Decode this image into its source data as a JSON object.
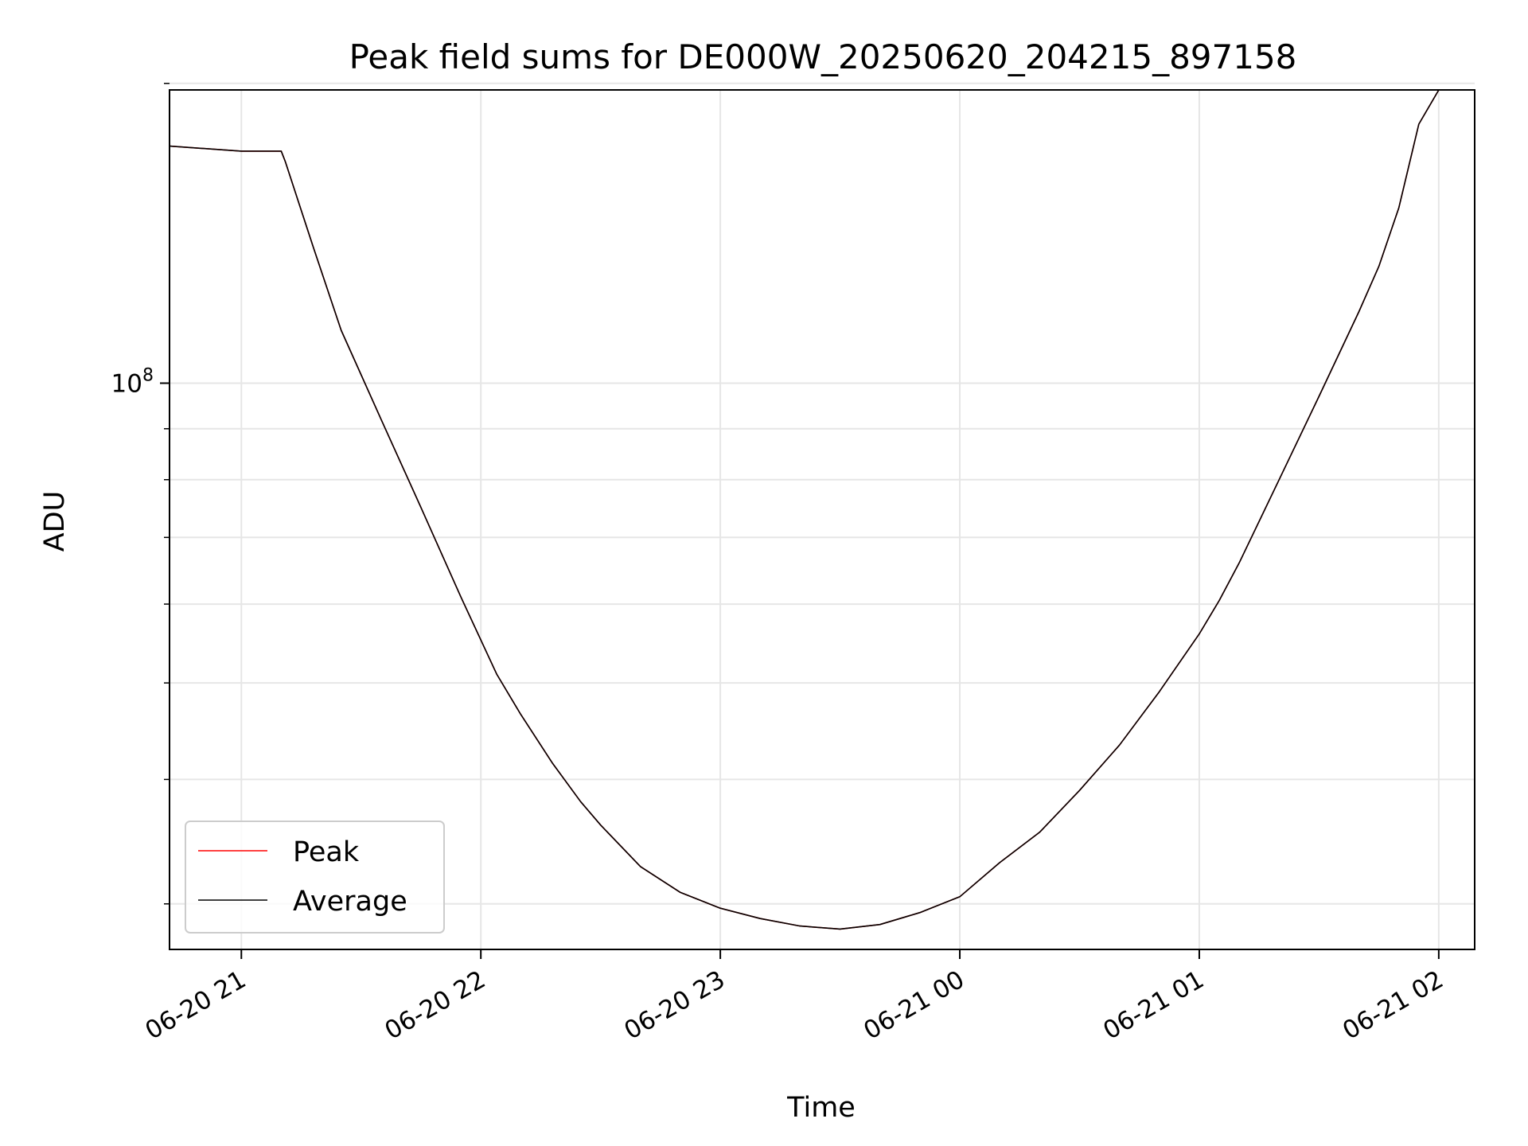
{
  "chart_data": {
    "type": "line",
    "title": "Peak field sums for DE000W_20250620_204215_897158",
    "xlabel": "Time",
    "ylabel": "ADU",
    "y_scale": "log",
    "grid": true,
    "legend_position": "lower-left",
    "xlim": [
      "2025-06-20 20:42",
      "2025-06-21 02:09"
    ],
    "ylim": [
      27000000,
      197000000
    ],
    "x_ticks": [
      {
        "value": "2025-06-20 21:00",
        "label": "06-20 21"
      },
      {
        "value": "2025-06-20 22:00",
        "label": "06-20 22"
      },
      {
        "value": "2025-06-20 23:00",
        "label": "06-20 23"
      },
      {
        "value": "2025-06-21 00:00",
        "label": "06-21 00"
      },
      {
        "value": "2025-06-21 01:00",
        "label": "06-21 01"
      },
      {
        "value": "2025-06-21 02:00",
        "label": "06-21 02"
      }
    ],
    "y_major_ticks": [
      {
        "value": 100000000,
        "label_base": "10",
        "label_exp": "8"
      }
    ],
    "y_minor_ticks": [
      30000000,
      40000000,
      50000000,
      60000000,
      70000000,
      80000000,
      90000000,
      200000000
    ],
    "series": [
      {
        "name": "Peak",
        "color": "#ff0000",
        "points": [
          [
            "2025-06-20 20:42",
            173000000
          ],
          [
            "2025-06-20 21:00",
            171000000
          ],
          [
            "2025-06-20 21:10",
            171000000
          ],
          [
            "2025-06-20 21:11",
            167000000
          ],
          [
            "2025-06-20 21:18",
            137000000
          ],
          [
            "2025-06-20 21:25",
            113000000
          ],
          [
            "2025-06-20 21:35",
            92000000
          ],
          [
            "2025-06-20 21:45",
            75000000
          ],
          [
            "2025-06-20 21:55",
            61000000
          ],
          [
            "2025-06-20 22:04",
            51000000
          ],
          [
            "2025-06-20 22:10",
            46500000
          ],
          [
            "2025-06-20 22:18",
            41500000
          ],
          [
            "2025-06-20 22:25",
            38000000
          ],
          [
            "2025-06-20 22:30",
            36000000
          ],
          [
            "2025-06-20 22:40",
            32700000
          ],
          [
            "2025-06-20 22:50",
            30800000
          ],
          [
            "2025-06-20 23:00",
            29700000
          ],
          [
            "2025-06-20 23:10",
            29000000
          ],
          [
            "2025-06-20 23:20",
            28500000
          ],
          [
            "2025-06-20 23:30",
            28300000
          ],
          [
            "2025-06-20 23:40",
            28600000
          ],
          [
            "2025-06-20 23:50",
            29400000
          ],
          [
            "2025-06-21 00:00",
            30500000
          ],
          [
            "2025-06-21 00:10",
            33000000
          ],
          [
            "2025-06-21 00:20",
            35400000
          ],
          [
            "2025-06-21 00:30",
            39000000
          ],
          [
            "2025-06-21 00:40",
            43300000
          ],
          [
            "2025-06-21 00:50",
            49000000
          ],
          [
            "2025-06-21 01:00",
            56000000
          ],
          [
            "2025-06-21 01:05",
            60500000
          ],
          [
            "2025-06-21 01:10",
            66000000
          ],
          [
            "2025-06-21 01:20",
            80000000
          ],
          [
            "2025-06-21 01:30",
            97000000
          ],
          [
            "2025-06-21 01:40",
            118000000
          ],
          [
            "2025-06-21 01:45",
            131000000
          ],
          [
            "2025-06-21 01:50",
            150000000
          ],
          [
            "2025-06-21 01:55",
            182000000
          ],
          [
            "2025-06-21 02:00",
            197000000
          ],
          [
            "2025-06-21 02:09",
            197000000
          ]
        ]
      },
      {
        "name": "Average",
        "color": "#000000",
        "points": [
          [
            "2025-06-20 20:42",
            173000000
          ],
          [
            "2025-06-20 21:00",
            171000000
          ],
          [
            "2025-06-20 21:10",
            171000000
          ],
          [
            "2025-06-20 21:11",
            167000000
          ],
          [
            "2025-06-20 21:18",
            137000000
          ],
          [
            "2025-06-20 21:25",
            113000000
          ],
          [
            "2025-06-20 21:35",
            92000000
          ],
          [
            "2025-06-20 21:45",
            75000000
          ],
          [
            "2025-06-20 21:55",
            61000000
          ],
          [
            "2025-06-20 22:04",
            51000000
          ],
          [
            "2025-06-20 22:10",
            46500000
          ],
          [
            "2025-06-20 22:18",
            41500000
          ],
          [
            "2025-06-20 22:25",
            38000000
          ],
          [
            "2025-06-20 22:30",
            36000000
          ],
          [
            "2025-06-20 22:40",
            32700000
          ],
          [
            "2025-06-20 22:50",
            30800000
          ],
          [
            "2025-06-20 23:00",
            29700000
          ],
          [
            "2025-06-20 23:10",
            29000000
          ],
          [
            "2025-06-20 23:20",
            28500000
          ],
          [
            "2025-06-20 23:30",
            28300000
          ],
          [
            "2025-06-20 23:40",
            28600000
          ],
          [
            "2025-06-20 23:50",
            29400000
          ],
          [
            "2025-06-21 00:00",
            30500000
          ],
          [
            "2025-06-21 00:10",
            33000000
          ],
          [
            "2025-06-21 00:20",
            35400000
          ],
          [
            "2025-06-21 00:30",
            39000000
          ],
          [
            "2025-06-21 00:40",
            43300000
          ],
          [
            "2025-06-21 00:50",
            49000000
          ],
          [
            "2025-06-21 01:00",
            56000000
          ],
          [
            "2025-06-21 01:05",
            60500000
          ],
          [
            "2025-06-21 01:10",
            66000000
          ],
          [
            "2025-06-21 01:20",
            80000000
          ],
          [
            "2025-06-21 01:30",
            97000000
          ],
          [
            "2025-06-21 01:40",
            118000000
          ],
          [
            "2025-06-21 01:45",
            131000000
          ],
          [
            "2025-06-21 01:50",
            150000000
          ],
          [
            "2025-06-21 01:55",
            182000000
          ],
          [
            "2025-06-21 02:00",
            197000000
          ],
          [
            "2025-06-21 02:09",
            197000000
          ]
        ]
      }
    ]
  }
}
